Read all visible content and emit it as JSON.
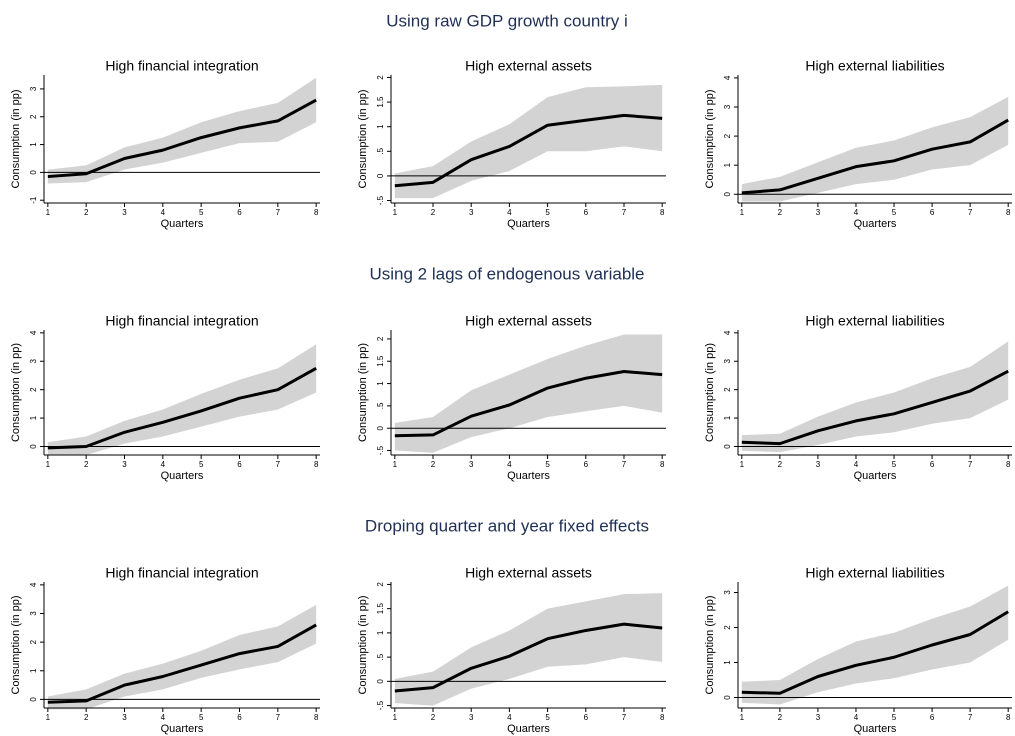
{
  "section_titles": [
    "Using raw GDP growth country i",
    "Using 2 lags of endogenous variable",
    "Droping quarter and year fixed effects"
  ],
  "chart_data": [
    {
      "type": "line",
      "title": "High financial integration",
      "xlabel": "Quarters",
      "ylabel": "Consumption (in pp)",
      "x": [
        1,
        2,
        3,
        4,
        5,
        6,
        7,
        8
      ],
      "xlim": [
        0.9,
        8.1
      ],
      "xticks": [
        1,
        2,
        3,
        4,
        5,
        6,
        7,
        8
      ],
      "ylim": [
        -1.1,
        3.5
      ],
      "yticks": [
        -1,
        0,
        1,
        2,
        3
      ],
      "series": [
        {
          "color": "#000000",
          "band_color": "#d3d3d3",
          "values": [
            -0.15,
            -0.05,
            0.5,
            0.8,
            1.25,
            1.6,
            1.85,
            2.6
          ],
          "lower": [
            -0.4,
            -0.35,
            0.1,
            0.35,
            0.7,
            1.05,
            1.1,
            1.8
          ],
          "upper": [
            0.1,
            0.25,
            0.9,
            1.25,
            1.8,
            2.2,
            2.5,
            3.4
          ]
        }
      ]
    },
    {
      "type": "line",
      "title": "High external assets",
      "xlabel": "Quarters",
      "ylabel": "Consumption (in pp)",
      "x": [
        1,
        2,
        3,
        4,
        5,
        6,
        7,
        8
      ],
      "xlim": [
        0.9,
        8.1
      ],
      "xticks": [
        1,
        2,
        3,
        4,
        5,
        6,
        7,
        8
      ],
      "ylim": [
        -0.55,
        2.05
      ],
      "yticks": [
        {
          "value": -0.5,
          "label": "-.5"
        },
        0,
        {
          "value": 0.5,
          "label": ".5"
        },
        1,
        1.5,
        2
      ],
      "series": [
        {
          "color": "#000000",
          "band_color": "#d3d3d3",
          "values": [
            -0.2,
            -0.13,
            0.33,
            0.6,
            1.03,
            1.13,
            1.23,
            1.17
          ],
          "lower": [
            -0.45,
            -0.45,
            -0.1,
            0.1,
            0.5,
            0.5,
            0.6,
            0.5
          ],
          "upper": [
            0.05,
            0.2,
            0.7,
            1.05,
            1.6,
            1.8,
            1.82,
            1.85
          ]
        }
      ]
    },
    {
      "type": "line",
      "title": "High external liabilities",
      "xlabel": "Quarters",
      "ylabel": "Consumption (in pp)",
      "x": [
        1,
        2,
        3,
        4,
        5,
        6,
        7,
        8
      ],
      "xlim": [
        0.9,
        8.1
      ],
      "xticks": [
        1,
        2,
        3,
        4,
        5,
        6,
        7,
        8
      ],
      "ylim": [
        -0.3,
        4.1
      ],
      "yticks": [
        0,
        1,
        2,
        3,
        4
      ],
      "series": [
        {
          "color": "#000000",
          "band_color": "#d3d3d3",
          "values": [
            0.05,
            0.15,
            0.55,
            0.95,
            1.15,
            1.55,
            1.8,
            2.55
          ],
          "lower": [
            -0.25,
            -0.25,
            0.05,
            0.35,
            0.5,
            0.85,
            1.0,
            1.7
          ],
          "upper": [
            0.35,
            0.6,
            1.1,
            1.6,
            1.85,
            2.3,
            2.65,
            3.35
          ]
        }
      ]
    },
    {
      "type": "line",
      "title": "High financial integration",
      "xlabel": "Quarters",
      "ylabel": "Consumption (in pp)",
      "x": [
        1,
        2,
        3,
        4,
        5,
        6,
        7,
        8
      ],
      "xlim": [
        0.9,
        8.1
      ],
      "xticks": [
        1,
        2,
        3,
        4,
        5,
        6,
        7,
        8
      ],
      "ylim": [
        -0.3,
        4.1
      ],
      "yticks": [
        0,
        1,
        2,
        3,
        4
      ],
      "series": [
        {
          "color": "#000000",
          "band_color": "#d3d3d3",
          "values": [
            -0.05,
            0.0,
            0.5,
            0.85,
            1.25,
            1.7,
            2.0,
            2.75
          ],
          "lower": [
            -0.3,
            -0.3,
            0.1,
            0.35,
            0.7,
            1.05,
            1.3,
            1.9
          ],
          "upper": [
            0.15,
            0.35,
            0.9,
            1.3,
            1.85,
            2.35,
            2.75,
            3.6
          ]
        }
      ]
    },
    {
      "type": "line",
      "title": "High external assets",
      "xlabel": "Quarters",
      "ylabel": "Consumption (in pp)",
      "x": [
        1,
        2,
        3,
        4,
        5,
        6,
        7,
        8
      ],
      "xlim": [
        0.9,
        8.1
      ],
      "xticks": [
        1,
        2,
        3,
        4,
        5,
        6,
        7,
        8
      ],
      "ylim": [
        -0.6,
        2.2
      ],
      "yticks": [
        {
          "value": -0.5,
          "label": "-.5"
        },
        0,
        {
          "value": 0.5,
          "label": ".5"
        },
        1,
        1.5,
        2
      ],
      "series": [
        {
          "color": "#000000",
          "band_color": "#d3d3d3",
          "values": [
            -0.17,
            -0.15,
            0.27,
            0.52,
            0.9,
            1.12,
            1.27,
            1.2
          ],
          "lower": [
            -0.5,
            -0.55,
            -0.2,
            0,
            0.25,
            0.38,
            0.5,
            0.35
          ],
          "upper": [
            0.12,
            0.25,
            0.85,
            1.2,
            1.55,
            1.85,
            2.1,
            2.1
          ]
        }
      ]
    },
    {
      "type": "line",
      "title": "High external liabilities",
      "xlabel": "Quarters",
      "ylabel": "Consumption (in pp)",
      "x": [
        1,
        2,
        3,
        4,
        5,
        6,
        7,
        8
      ],
      "xlim": [
        0.9,
        8.1
      ],
      "xticks": [
        1,
        2,
        3,
        4,
        5,
        6,
        7,
        8
      ],
      "ylim": [
        -0.3,
        4.1
      ],
      "yticks": [
        0,
        1,
        2,
        3,
        4
      ],
      "series": [
        {
          "color": "#000000",
          "band_color": "#d3d3d3",
          "values": [
            0.15,
            0.1,
            0.55,
            0.9,
            1.15,
            1.55,
            1.95,
            2.65
          ],
          "lower": [
            -0.15,
            -0.2,
            0.05,
            0.35,
            0.5,
            0.8,
            1.0,
            1.65
          ],
          "upper": [
            0.4,
            0.45,
            1.05,
            1.55,
            1.9,
            2.4,
            2.8,
            3.7
          ]
        }
      ]
    },
    {
      "type": "line",
      "title": "High financial integration",
      "xlabel": "Quarters",
      "ylabel": "Consumption (in pp)",
      "x": [
        1,
        2,
        3,
        4,
        5,
        6,
        7,
        8
      ],
      "xlim": [
        0.9,
        8.1
      ],
      "xticks": [
        1,
        2,
        3,
        4,
        5,
        6,
        7,
        8
      ],
      "ylim": [
        -0.3,
        4.1
      ],
      "yticks": [
        0,
        1,
        2,
        3,
        4
      ],
      "series": [
        {
          "color": "#000000",
          "band_color": "#d3d3d3",
          "values": [
            -0.1,
            -0.05,
            0.5,
            0.8,
            1.2,
            1.6,
            1.85,
            2.6
          ],
          "lower": [
            -0.35,
            -0.35,
            0.1,
            0.35,
            0.75,
            1.05,
            1.3,
            1.95
          ],
          "upper": [
            0.1,
            0.35,
            0.9,
            1.25,
            1.7,
            2.25,
            2.55,
            3.3
          ]
        }
      ]
    },
    {
      "type": "line",
      "title": "High external assets",
      "xlabel": "Quarters",
      "ylabel": "Consumption (in pp)",
      "x": [
        1,
        2,
        3,
        4,
        5,
        6,
        7,
        8
      ],
      "xlim": [
        0.9,
        8.1
      ],
      "xticks": [
        1,
        2,
        3,
        4,
        5,
        6,
        7,
        8
      ],
      "ylim": [
        -0.55,
        2.05
      ],
      "yticks": [
        {
          "value": -0.5,
          "label": "-.5"
        },
        0,
        {
          "value": 0.5,
          "label": ".5"
        },
        1,
        1.5,
        2
      ],
      "series": [
        {
          "color": "#000000",
          "band_color": "#d3d3d3",
          "values": [
            -0.2,
            -0.13,
            0.27,
            0.52,
            0.88,
            1.05,
            1.18,
            1.1
          ],
          "lower": [
            -0.45,
            -0.5,
            -0.15,
            0.05,
            0.3,
            0.35,
            0.5,
            0.4
          ],
          "upper": [
            0.05,
            0.2,
            0.7,
            1.05,
            1.5,
            1.65,
            1.8,
            1.82
          ]
        }
      ]
    },
    {
      "type": "line",
      "title": "High external liabilities",
      "xlabel": "Quarters",
      "ylabel": "Consumption (in pp)",
      "x": [
        1,
        2,
        3,
        4,
        5,
        6,
        7,
        8
      ],
      "xlim": [
        0.9,
        8.1
      ],
      "xticks": [
        1,
        2,
        3,
        4,
        5,
        6,
        7,
        8
      ],
      "ylim": [
        -0.3,
        3.3
      ],
      "yticks": [
        0,
        1,
        2,
        3
      ],
      "series": [
        {
          "color": "#000000",
          "band_color": "#d3d3d3",
          "values": [
            0.15,
            0.12,
            0.6,
            0.92,
            1.15,
            1.5,
            1.8,
            2.45
          ],
          "lower": [
            -0.15,
            -0.2,
            0.15,
            0.4,
            0.55,
            0.8,
            1.0,
            1.65
          ],
          "upper": [
            0.45,
            0.5,
            1.1,
            1.6,
            1.85,
            2.25,
            2.6,
            3.2
          ]
        }
      ]
    }
  ]
}
